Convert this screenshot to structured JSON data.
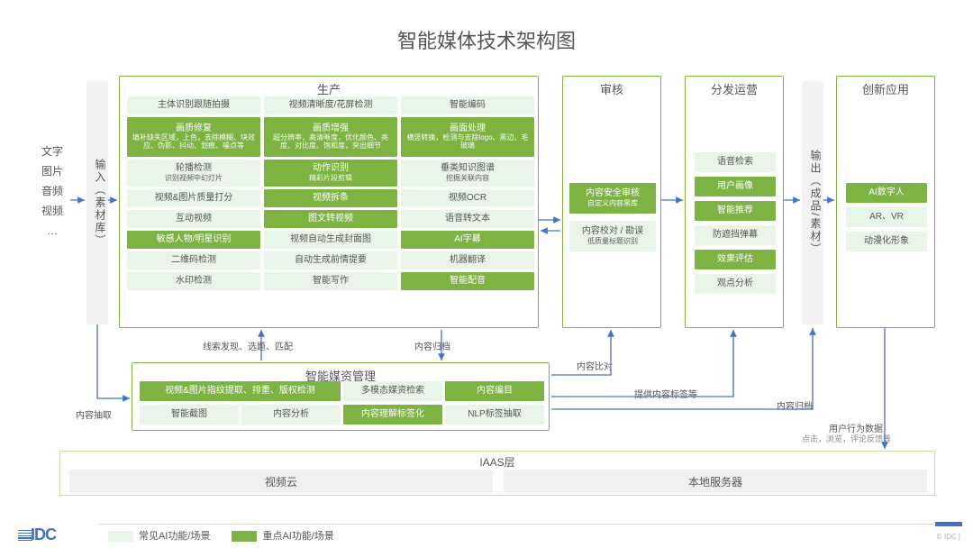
{
  "title": "智能媒体技术架构图",
  "inputs": [
    "文字",
    "图片",
    "音频",
    "视频",
    "…"
  ],
  "vlabels": {
    "input": "输入（素材库）",
    "output": "输出（成品/素材）"
  },
  "panels": {
    "production": {
      "title": "生产",
      "rows": [
        [
          {
            "t": "主体识别跟随拍摄",
            "v": "light"
          },
          {
            "t": "视频清晰度/花屏检测",
            "v": "light"
          },
          {
            "t": "智能编码",
            "v": "light"
          }
        ],
        [
          {
            "t": "画质修复",
            "sub": "填补缺失区域，上色，去除模糊、块效应、伪影、抖动、划痕、噪点等",
            "v": "dark"
          },
          {
            "t": "画质增强",
            "sub": "超分辨率，高清晰度，优化颜色、亮度、对比度、饱和度，突出细节",
            "v": "dark"
          },
          {
            "t": "画面处理",
            "sub": "横竖转换，检测与去除logo、黑边、毛玻璃",
            "v": "dark"
          }
        ],
        [
          {
            "t": "轮播检测",
            "sub": "识别视频中幻灯片",
            "v": "light"
          },
          {
            "t": "动作识别",
            "sub": "精彩片段剪辑",
            "v": "dark"
          },
          {
            "t": "垂类知识图谱",
            "sub": "挖掘关联内容",
            "v": "light"
          }
        ],
        [
          {
            "t": "视频&图片质量打分",
            "v": "light"
          },
          {
            "t": "视频拆条",
            "v": "dark"
          },
          {
            "t": "视频OCR",
            "v": "light"
          }
        ],
        [
          {
            "t": "互动视频",
            "v": "light"
          },
          {
            "t": "图文转视频",
            "v": "dark"
          },
          {
            "t": "语音转文本",
            "v": "light"
          }
        ],
        [
          {
            "t": "敏感人物/明星识别",
            "v": "dark"
          },
          {
            "t": "视频自动生成封面图",
            "v": "light"
          },
          {
            "t": "AI字幕",
            "v": "dark"
          }
        ],
        [
          {
            "t": "二维码检测",
            "v": "light"
          },
          {
            "t": "自动生成前情提要",
            "v": "light"
          },
          {
            "t": "机器翻译",
            "v": "light"
          }
        ],
        [
          {
            "t": "水印检测",
            "v": "light"
          },
          {
            "t": "智能写作",
            "v": "light"
          },
          {
            "t": "智能配音",
            "v": "dark"
          }
        ]
      ]
    },
    "review": {
      "title": "审核",
      "cells": [
        {
          "t": "内容安全审核",
          "sub": "自定义内容黑库",
          "v": "dark"
        },
        {
          "t": "内容校对 / 勘误",
          "sub": "低质量标题识别",
          "v": "light"
        }
      ]
    },
    "distribute": {
      "title": "分发运营",
      "cells": [
        {
          "t": "语音检索",
          "v": "light"
        },
        {
          "t": "用户画像",
          "v": "dark"
        },
        {
          "t": "智能推荐",
          "v": "dark"
        },
        {
          "t": "防遮挡弹幕",
          "v": "light"
        },
        {
          "t": "效果评估",
          "v": "dark"
        },
        {
          "t": "观点分析",
          "v": "light"
        }
      ]
    },
    "innovate": {
      "title": "创新应用",
      "cells": [
        {
          "t": "AI数字人",
          "v": "dark"
        },
        {
          "t": "AR、VR",
          "v": "light"
        },
        {
          "t": "动漫化形象",
          "v": "light"
        }
      ]
    },
    "asset": {
      "title": "智能媒资管理",
      "rows": [
        [
          {
            "t": "视频&图片指纹提取、排重、版权检测",
            "v": "dark",
            "w": 2
          },
          {
            "t": "多模态媒资检索",
            "v": "light",
            "w": 1
          },
          {
            "t": "内容编目",
            "v": "dark",
            "w": 1
          }
        ],
        [
          {
            "t": "智能截图",
            "v": "light",
            "w": 1
          },
          {
            "t": "内容分析",
            "v": "light",
            "w": 1
          },
          {
            "t": "内容理解标签化",
            "v": "dark",
            "w": 1
          },
          {
            "t": "NLP标签抽取",
            "v": "light",
            "w": 1
          }
        ]
      ]
    }
  },
  "iaas": {
    "title": "IAAS层",
    "cells": [
      "视频云",
      "本地服务器"
    ]
  },
  "arrowLabels": {
    "extract": "内容抽取",
    "clue": "线索发现、选题、匹配",
    "archive1": "内容归档",
    "compare": "内容比对",
    "tags": "提供内容标签等",
    "archive2": "内容归档",
    "behavior": "用户行为数据",
    "behaviorSub": "点击，浏览，评论反馈等"
  },
  "legend": {
    "light": "常见AI功能/场景",
    "dark": "重点AI功能/场景"
  },
  "colors": {
    "border": "#7cb342",
    "dark": "#7cb342",
    "light": "#e8f5e8",
    "gray": "#f0f0f0",
    "text": "#555555",
    "accent": "#4472c4"
  },
  "logo": "IDC",
  "copyright": "© IDC |"
}
